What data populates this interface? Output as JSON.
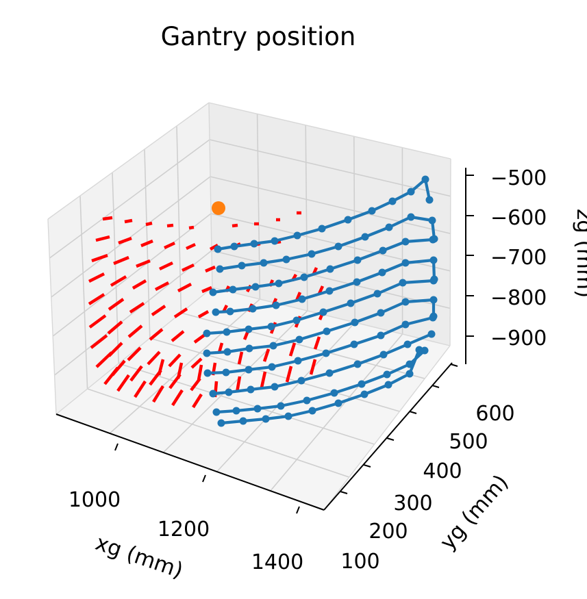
{
  "chart_data": {
    "type": "scatter",
    "projection": "3d",
    "title": "Gantry position",
    "xlabel": "xg (mm)",
    "ylabel": "yg (mm)",
    "zlabel": "zg (mm)",
    "x_ticks": [
      "1000",
      "1200",
      "1400"
    ],
    "y_ticks": [
      "100",
      "200",
      "300",
      "400",
      "500",
      "600"
    ],
    "z_ticks": [
      "−500",
      "−600",
      "−700",
      "−800",
      "−900"
    ],
    "grid": true,
    "colors": {
      "path": "#1f77b4",
      "vectors": "#ff0000",
      "origin": "#ff7f0e"
    },
    "series": [
      {
        "marker": "line+points",
        "color": "#1f77b4",
        "rows": [
          [
            [
              318,
              364
            ],
            [
              342,
              360
            ],
            [
              371,
              356
            ],
            [
              401,
              352
            ],
            [
              434,
              344
            ],
            [
              470,
              334
            ],
            [
              508,
              321
            ],
            [
              543,
              308
            ],
            [
              573,
              294
            ],
            [
              600,
              280
            ],
            [
              621,
              262
            ],
            [
              627,
              292
            ]
          ],
          [
            [
              321,
              393
            ],
            [
              353,
              388
            ],
            [
              385,
              384
            ],
            [
              418,
              379
            ],
            [
              455,
              371
            ],
            [
              494,
              360
            ],
            [
              533,
              346
            ],
            [
              568,
              332
            ],
            [
              600,
              317
            ],
            [
              631,
              322
            ],
            [
              634,
              349
            ]
          ],
          [
            [
              311,
              427
            ],
            [
              340,
              423
            ],
            [
              373,
              419
            ],
            [
              407,
              414
            ],
            [
              444,
              405
            ],
            [
              482,
              393
            ],
            [
              522,
              380
            ],
            [
              559,
              366
            ],
            [
              592,
              353
            ],
            [
              632,
              350
            ]
          ],
          [
            [
              315,
              456
            ],
            [
              336,
              455
            ],
            [
              369,
              451
            ],
            [
              403,
              446
            ],
            [
              441,
              437
            ],
            [
              481,
              425
            ],
            [
              521,
              412
            ],
            [
              558,
              398
            ],
            [
              592,
              384
            ],
            [
              633,
              380
            ],
            [
              634,
              408
            ]
          ],
          [
            [
              302,
              487
            ],
            [
              331,
              485
            ],
            [
              363,
              481
            ],
            [
              396,
              477
            ],
            [
              433,
              468
            ],
            [
              472,
              456
            ],
            [
              512,
              443
            ],
            [
              551,
              429
            ],
            [
              588,
              413
            ],
            [
              633,
              410
            ]
          ],
          [
            [
              302,
              516
            ],
            [
              332,
              514
            ],
            [
              364,
              509
            ],
            [
              399,
              505
            ],
            [
              437,
              496
            ],
            [
              477,
              484
            ],
            [
              518,
              471
            ],
            [
              556,
              457
            ],
            [
              592,
              441
            ],
            [
              633,
              438
            ],
            [
              633,
              462
            ]
          ],
          [
            [
              303,
              545
            ],
            [
              330,
              544
            ],
            [
              363,
              540
            ],
            [
              397,
              536
            ],
            [
              435,
              527
            ],
            [
              476,
              516
            ],
            [
              517,
              503
            ],
            [
              556,
              490
            ],
            [
              592,
              474
            ],
            [
              632,
              464
            ]
          ],
          [
            [
              311,
              575
            ],
            [
              334,
              573
            ],
            [
              366,
              569
            ],
            [
              401,
              565
            ],
            [
              440,
              556
            ],
            [
              481,
              545
            ],
            [
              522,
              532
            ],
            [
              560,
              518
            ],
            [
              595,
              503
            ],
            [
              630,
              488
            ]
          ],
          [
            [
              316,
              602
            ],
            [
              345,
              600
            ],
            [
              376,
              597
            ],
            [
              410,
              593
            ],
            [
              448,
              585
            ],
            [
              488,
              574
            ],
            [
              528,
              561
            ],
            [
              565,
              547
            ],
            [
              598,
              532
            ],
            [
              620,
              512
            ]
          ],
          [
            [
              323,
              618
            ],
            [
              355,
              615
            ],
            [
              388,
              612
            ],
            [
              421,
              608
            ],
            [
              456,
              600
            ],
            [
              494,
              589
            ],
            [
              532,
              576
            ],
            [
              567,
              562
            ],
            [
              598,
              546
            ],
            [
              612,
              511
            ]
          ]
        ]
      },
      {
        "marker": "quiver",
        "color": "#ff0000",
        "vectors": [
          [
            150,
            320,
            164,
            318
          ],
          [
            182,
            324,
            193,
            322
          ],
          [
            213,
            328,
            222,
            326
          ],
          [
            244,
            330,
            253,
            329
          ],
          [
            276,
            333,
            283,
            332
          ],
          [
            339,
            330,
            347,
            329
          ],
          [
            371,
            327,
            378,
            327
          ],
          [
            403,
            321,
            409,
            321
          ],
          [
            433,
            311,
            440,
            311
          ],
          [
            140,
            351,
            160,
            346
          ],
          [
            173,
            355,
            192,
            348
          ],
          [
            206,
            359,
            223,
            352
          ],
          [
            240,
            362,
            255,
            355
          ],
          [
            272,
            363,
            285,
            357
          ],
          [
            307,
            364,
            318,
            358
          ],
          [
            345,
            359,
            351,
            356
          ],
          [
            375,
            357,
            380,
            356
          ],
          [
            404,
            354,
            410,
            353
          ],
          [
            432,
            346,
            437,
            347
          ],
          [
            134,
            381,
            157,
            373
          ],
          [
            166,
            385,
            188,
            376
          ],
          [
            199,
            389,
            219,
            381
          ],
          [
            233,
            393,
            252,
            384
          ],
          [
            266,
            395,
            283,
            387
          ],
          [
            300,
            396,
            314,
            390
          ],
          [
            130,
            411,
            152,
            400
          ],
          [
            162,
            417,
            184,
            404
          ],
          [
            194,
            421,
            213,
            410
          ],
          [
            227,
            423,
            246,
            413
          ],
          [
            260,
            425,
            279,
            415
          ],
          [
            295,
            426,
            309,
            420
          ],
          [
            130,
            444,
            152,
            430
          ],
          [
            159,
            452,
            180,
            437
          ],
          [
            190,
            456,
            210,
            443
          ],
          [
            222,
            460,
            241,
            447
          ],
          [
            255,
            463,
            273,
            451
          ],
          [
            290,
            463,
            304,
            455
          ],
          [
            330,
            426,
            334,
            418
          ],
          [
            361,
            426,
            366,
            417
          ],
          [
            394,
            418,
            398,
            409
          ],
          [
            427,
            410,
            432,
            401
          ],
          [
            458,
            400,
            462,
            391
          ],
          [
            131,
            478,
            154,
            461
          ],
          [
            158,
            487,
            178,
            470
          ],
          [
            188,
            492,
            207,
            476
          ],
          [
            219,
            496,
            237,
            481
          ],
          [
            251,
            498,
            268,
            484
          ],
          [
            284,
            500,
            299,
            489
          ],
          [
            326,
            456,
            331,
            446
          ],
          [
            363,
            455,
            368,
            444
          ],
          [
            398,
            448,
            403,
            436
          ],
          [
            433,
            439,
            438,
            427
          ],
          [
            466,
            429,
            471,
            418
          ],
          [
            133,
            508,
            156,
            490
          ],
          [
            159,
            520,
            178,
            501
          ],
          [
            187,
            526,
            205,
            508
          ],
          [
            216,
            532,
            233,
            514
          ],
          [
            247,
            535,
            263,
            518
          ],
          [
            280,
            537,
            294,
            524
          ],
          [
            320,
            515,
            324,
            501
          ],
          [
            357,
            496,
            363,
            481
          ],
          [
            396,
            487,
            402,
            471
          ],
          [
            432,
            478,
            438,
            462
          ],
          [
            467,
            467,
            473,
            452
          ],
          [
            141,
            536,
            163,
            515
          ],
          [
            164,
            548,
            182,
            527
          ],
          [
            191,
            556,
            207,
            535
          ],
          [
            219,
            562,
            235,
            541
          ],
          [
            248,
            567,
            263,
            547
          ],
          [
            279,
            570,
            292,
            553
          ],
          [
            311,
            548,
            314,
            530
          ],
          [
            349,
            532,
            353,
            514
          ],
          [
            386,
            528,
            392,
            510
          ],
          [
            424,
            520,
            430,
            501
          ],
          [
            460,
            510,
            466,
            492
          ],
          [
            153,
            561,
            172,
            537
          ],
          [
            172,
            571,
            188,
            548
          ],
          [
            197,
            580,
            212,
            557
          ],
          [
            224,
            587,
            238,
            564
          ],
          [
            252,
            592,
            266,
            570
          ],
          [
            282,
            595,
            294,
            576
          ],
          [
            314,
            580,
            316,
            557
          ],
          [
            346,
            573,
            350,
            550
          ],
          [
            382,
            566,
            387,
            543
          ],
          [
            419,
            558,
            425,
            535
          ],
          [
            454,
            547,
            460,
            525
          ],
          [
            232,
            548,
            238,
            525
          ],
          [
            260,
            553,
            265,
            530
          ],
          [
            290,
            555,
            294,
            533
          ]
        ]
      },
      {
        "marker": "point",
        "color": "#ff7f0e",
        "points": [
          [
            319,
            304
          ]
        ]
      }
    ]
  }
}
